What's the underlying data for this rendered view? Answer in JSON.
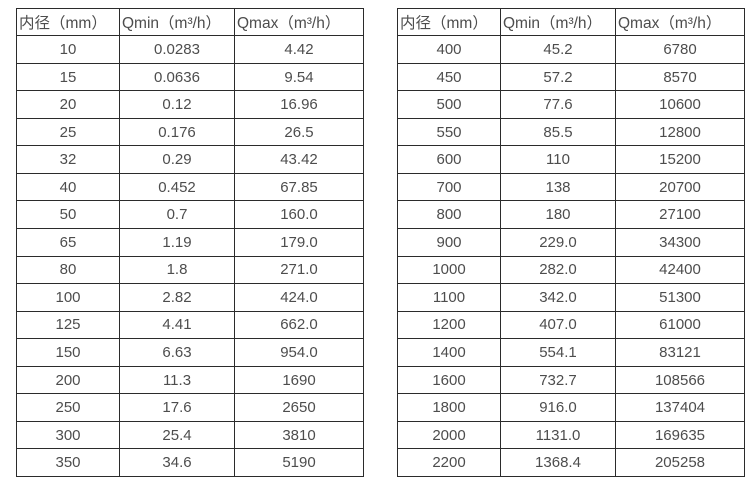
{
  "colors": {
    "border": "#2b2b2b",
    "text": "#4d4d4d",
    "background": "#ffffff"
  },
  "tables": [
    {
      "name": "flow-rate-table-small-diameters",
      "headers": [
        "内径（mm）",
        "Qmin（m³/h）",
        "Qmax（m³/h）"
      ],
      "rows": [
        [
          "10",
          "0.0283",
          "4.42"
        ],
        [
          "15",
          "0.0636",
          "9.54"
        ],
        [
          "20",
          "0.12",
          "16.96"
        ],
        [
          "25",
          "0.176",
          "26.5"
        ],
        [
          "32",
          "0.29",
          "43.42"
        ],
        [
          "40",
          "0.452",
          "67.85"
        ],
        [
          "50",
          "0.7",
          "160.0"
        ],
        [
          "65",
          "1.19",
          "179.0"
        ],
        [
          "80",
          "1.8",
          "271.0"
        ],
        [
          "100",
          "2.82",
          "424.0"
        ],
        [
          "125",
          "4.41",
          "662.0"
        ],
        [
          "150",
          "6.63",
          "954.0"
        ],
        [
          "200",
          "11.3",
          "1690"
        ],
        [
          "250",
          "17.6",
          "2650"
        ],
        [
          "300",
          "25.4",
          "3810"
        ],
        [
          "350",
          "34.6",
          "5190"
        ]
      ]
    },
    {
      "name": "flow-rate-table-large-diameters",
      "headers": [
        "内径（mm）",
        "Qmin（m³/h）",
        "Qmax（m³/h）"
      ],
      "rows": [
        [
          "400",
          "45.2",
          "6780"
        ],
        [
          "450",
          "57.2",
          "8570"
        ],
        [
          "500",
          "77.6",
          "10600"
        ],
        [
          "550",
          "85.5",
          "12800"
        ],
        [
          "600",
          "110",
          "15200"
        ],
        [
          "700",
          "138",
          "20700"
        ],
        [
          "800",
          "180",
          "27100"
        ],
        [
          "900",
          "229.0",
          "34300"
        ],
        [
          "1000",
          "282.0",
          "42400"
        ],
        [
          "1100",
          "342.0",
          "51300"
        ],
        [
          "1200",
          "407.0",
          "61000"
        ],
        [
          "1400",
          "554.1",
          "83121"
        ],
        [
          "1600",
          "732.7",
          "108566"
        ],
        [
          "1800",
          "916.0",
          "137404"
        ],
        [
          "2000",
          "1131.0",
          "169635"
        ],
        [
          "2200",
          "1368.4",
          "205258"
        ]
      ]
    }
  ]
}
